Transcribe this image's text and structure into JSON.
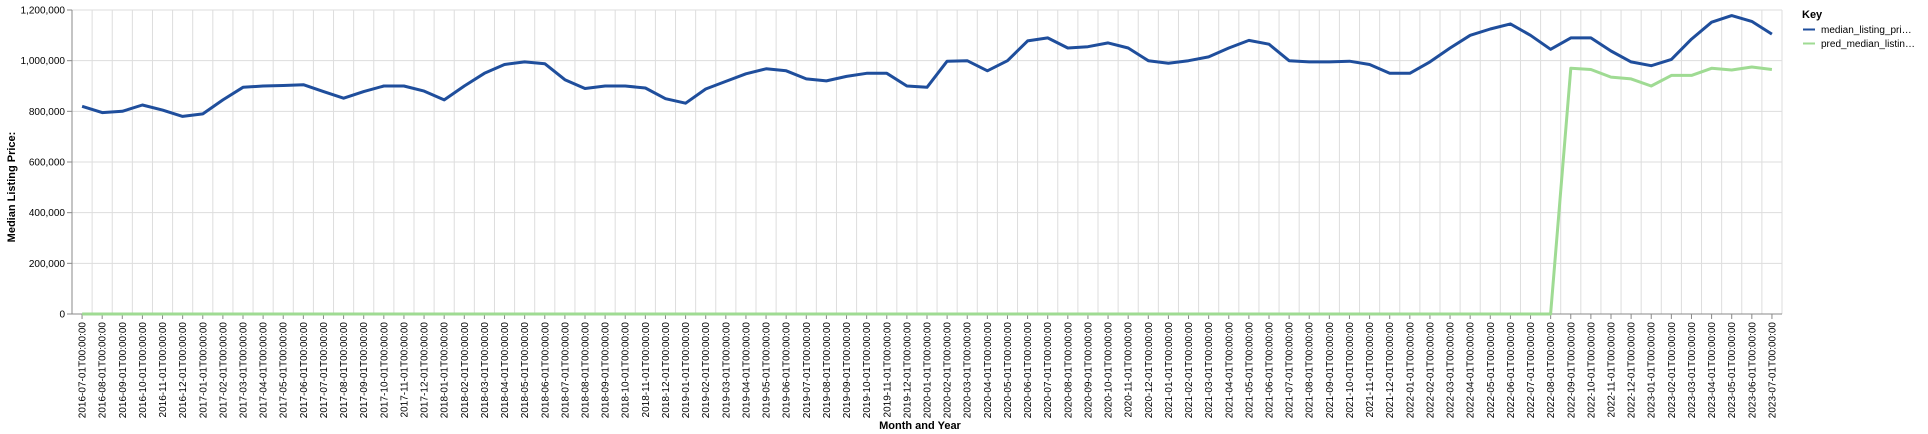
{
  "chart_data": {
    "type": "line",
    "xlabel": "Month and Year",
    "ylabel": "Median Listing Price:",
    "ylim": [
      0,
      1200000
    ],
    "yticks": [
      "0",
      "200,000",
      "400,000",
      "600,000",
      "800,000",
      "1,000,000",
      "1,200,000"
    ],
    "grid": true,
    "legend": {
      "title": "Key",
      "position": "right"
    },
    "categories": [
      "2016-07-01T00:00:00",
      "2016-08-01T00:00:00",
      "2016-09-01T00:00:00",
      "2016-10-01T00:00:00",
      "2016-11-01T00:00:00",
      "2016-12-01T00:00:00",
      "2017-01-01T00:00:00",
      "2017-02-01T00:00:00",
      "2017-03-01T00:00:00",
      "2017-04-01T00:00:00",
      "2017-05-01T00:00:00",
      "2017-06-01T00:00:00",
      "2017-07-01T00:00:00",
      "2017-08-01T00:00:00",
      "2017-09-01T00:00:00",
      "2017-10-01T00:00:00",
      "2017-11-01T00:00:00",
      "2017-12-01T00:00:00",
      "2018-01-01T00:00:00",
      "2018-02-01T00:00:00",
      "2018-03-01T00:00:00",
      "2018-04-01T00:00:00",
      "2018-05-01T00:00:00",
      "2018-06-01T00:00:00",
      "2018-07-01T00:00:00",
      "2018-08-01T00:00:00",
      "2018-09-01T00:00:00",
      "2018-10-01T00:00:00",
      "2018-11-01T00:00:00",
      "2018-12-01T00:00:00",
      "2019-01-01T00:00:00",
      "2019-02-01T00:00:00",
      "2019-03-01T00:00:00",
      "2019-04-01T00:00:00",
      "2019-05-01T00:00:00",
      "2019-06-01T00:00:00",
      "2019-07-01T00:00:00",
      "2019-08-01T00:00:00",
      "2019-09-01T00:00:00",
      "2019-10-01T00:00:00",
      "2019-11-01T00:00:00",
      "2019-12-01T00:00:00",
      "2020-01-01T00:00:00",
      "2020-02-01T00:00:00",
      "2020-03-01T00:00:00",
      "2020-04-01T00:00:00",
      "2020-05-01T00:00:00",
      "2020-06-01T00:00:00",
      "2020-07-01T00:00:00",
      "2020-08-01T00:00:00",
      "2020-09-01T00:00:00",
      "2020-10-01T00:00:00",
      "2020-11-01T00:00:00",
      "2020-12-01T00:00:00",
      "2021-01-01T00:00:00",
      "2021-02-01T00:00:00",
      "2021-03-01T00:00:00",
      "2021-04-01T00:00:00",
      "2021-05-01T00:00:00",
      "2021-06-01T00:00:00",
      "2021-07-01T00:00:00",
      "2021-08-01T00:00:00",
      "2021-09-01T00:00:00",
      "2021-10-01T00:00:00",
      "2021-11-01T00:00:00",
      "2021-12-01T00:00:00",
      "2022-01-01T00:00:00",
      "2022-02-01T00:00:00",
      "2022-03-01T00:00:00",
      "2022-04-01T00:00:00",
      "2022-05-01T00:00:00",
      "2022-06-01T00:00:00",
      "2022-07-01T00:00:00",
      "2022-08-01T00:00:00",
      "2022-09-01T00:00:00",
      "2022-10-01T00:00:00",
      "2022-11-01T00:00:00",
      "2022-12-01T00:00:00",
      "2023-01-01T00:00:00",
      "2023-02-01T00:00:00",
      "2023-03-01T00:00:00",
      "2023-04-01T00:00:00",
      "2023-05-01T00:00:00",
      "2023-06-01T00:00:00",
      "2023-07-01T00:00:00"
    ],
    "series": [
      {
        "name": "median_listing_pri…",
        "color": "#1f4e9c",
        "values": [
          820000,
          795000,
          800000,
          825000,
          805000,
          780000,
          790000,
          845000,
          895000,
          900000,
          902000,
          905000,
          878000,
          852000,
          878000,
          900000,
          900000,
          880000,
          845000,
          900000,
          950000,
          985000,
          995000,
          988000,
          925000,
          890000,
          900000,
          900000,
          892000,
          850000,
          832000,
          888000,
          918000,
          948000,
          968000,
          960000,
          928000,
          920000,
          938000,
          950000,
          950000,
          900000,
          895000,
          998000,
          1000000,
          960000,
          1000000,
          1078000,
          1090000,
          1050000,
          1055000,
          1070000,
          1050000,
          1000000,
          990000,
          1000000,
          1015000,
          1050000,
          1080000,
          1065000,
          1000000,
          995000,
          995000,
          998000,
          985000,
          950000,
          950000,
          995000,
          1050000,
          1100000,
          1125000,
          1145000,
          1100000,
          1045000,
          1090000,
          1090000,
          1038000,
          995000,
          980000,
          1005000,
          1085000,
          1152000,
          1178000,
          1155000,
          1105000
        ]
      },
      {
        "name": "pred_median_listin…",
        "color": "#9fdb93",
        "values": [
          0,
          0,
          0,
          0,
          0,
          0,
          0,
          0,
          0,
          0,
          0,
          0,
          0,
          0,
          0,
          0,
          0,
          0,
          0,
          0,
          0,
          0,
          0,
          0,
          0,
          0,
          0,
          0,
          0,
          0,
          0,
          0,
          0,
          0,
          0,
          0,
          0,
          0,
          0,
          0,
          0,
          0,
          0,
          0,
          0,
          0,
          0,
          0,
          0,
          0,
          0,
          0,
          0,
          0,
          0,
          0,
          0,
          0,
          0,
          0,
          0,
          0,
          0,
          0,
          0,
          0,
          0,
          0,
          0,
          0,
          0,
          0,
          0,
          0,
          970000,
          965000,
          935000,
          928000,
          900000,
          942000,
          942000,
          970000,
          963000,
          975000,
          965000
        ]
      }
    ]
  }
}
